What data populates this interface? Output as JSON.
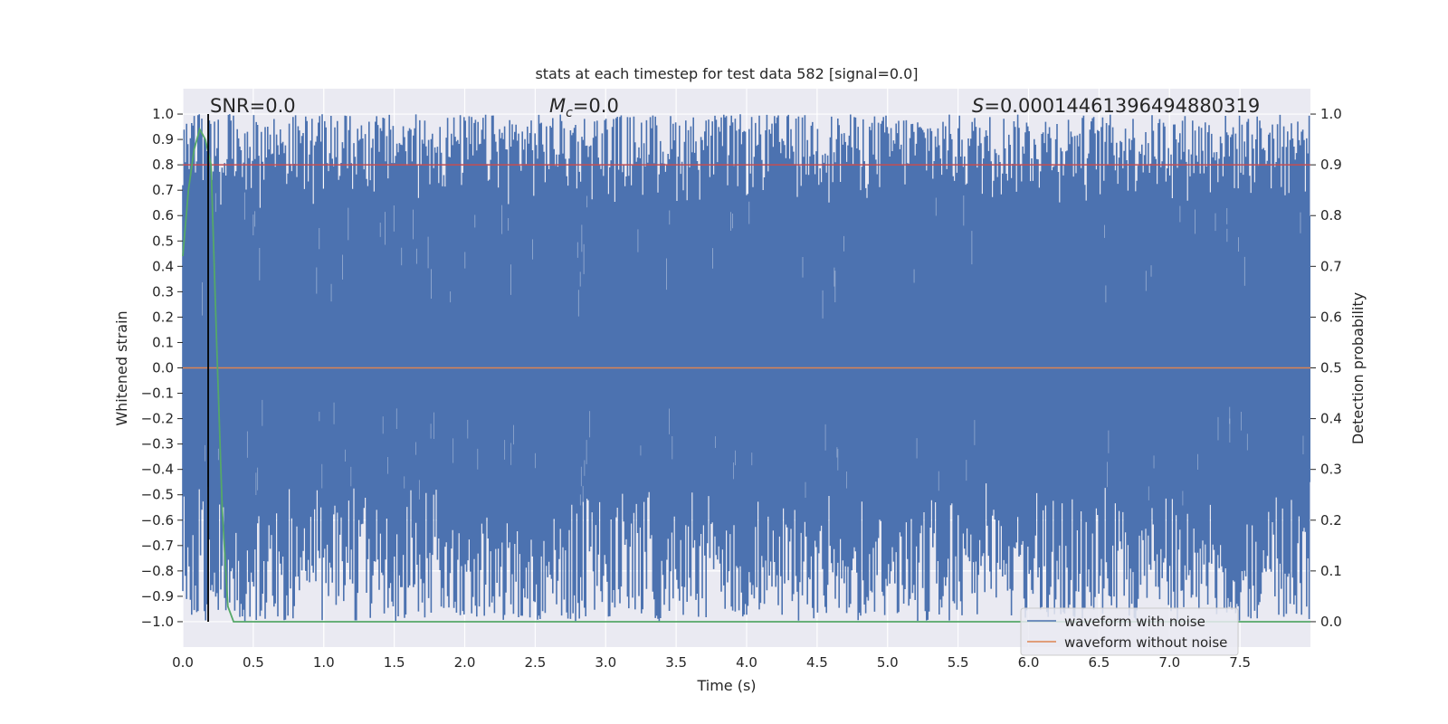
{
  "chart_data": {
    "type": "line",
    "title": "stats at each timestep for test data 582 [signal=0.0]",
    "xlabel": "Time (s)",
    "ylabel": "Whitened strain",
    "y2label": "Detection probability",
    "xlim": [
      0.0,
      8.0
    ],
    "ylim": [
      -1.1,
      1.1
    ],
    "y2lim": [
      -0.05,
      1.05
    ],
    "x_ticks": [
      "0.0",
      "0.5",
      "1.0",
      "1.5",
      "2.0",
      "2.5",
      "3.0",
      "3.5",
      "4.0",
      "4.5",
      "5.0",
      "5.5",
      "6.0",
      "6.5",
      "7.0",
      "7.5"
    ],
    "y_ticks": [
      "1.0",
      "0.9",
      "0.8",
      "0.7",
      "0.6",
      "0.5",
      "0.4",
      "0.3",
      "0.2",
      "0.1",
      "0.0",
      "−0.1",
      "−0.2",
      "−0.3",
      "−0.4",
      "−0.5",
      "−0.6",
      "−0.7",
      "−0.8",
      "−0.9",
      "−1.0"
    ],
    "y2_ticks": [
      "1.0",
      "0.9",
      "0.8",
      "0.7",
      "0.6",
      "0.5",
      "0.4",
      "0.3",
      "0.2",
      "0.1",
      "0.0"
    ],
    "annotations": {
      "snr": "SNR=0.0",
      "mc_symbol": "M",
      "mc_sub": "c",
      "mc_value": "=0.0",
      "s_symbol": "S",
      "s_value": "=0.00014461396494880319"
    },
    "marker_line_x": 0.18,
    "threshold_y2": 0.9,
    "noise_band": {
      "upper": 1.0,
      "lower": -1.0
    },
    "series": [
      {
        "name": "waveform with noise",
        "color": "#4c72b0"
      },
      {
        "name": "waveform without noise",
        "color": "#dd8452",
        "values_y": 0.0
      },
      {
        "color": "#55a868",
        "x": [
          0.0,
          0.04,
          0.08,
          0.12,
          0.16,
          0.2,
          0.24,
          0.28,
          0.32,
          0.36,
          8.0
        ],
        "y2": [
          0.72,
          0.85,
          0.93,
          0.97,
          0.95,
          0.9,
          0.55,
          0.22,
          0.03,
          0.0,
          0.0
        ]
      }
    ],
    "legend_location": "lower-right",
    "grid": true,
    "colors": {
      "background": "#eaeaf2",
      "grid": "#ffffff",
      "threshold": "#c44e52",
      "marker": "#000000"
    }
  }
}
